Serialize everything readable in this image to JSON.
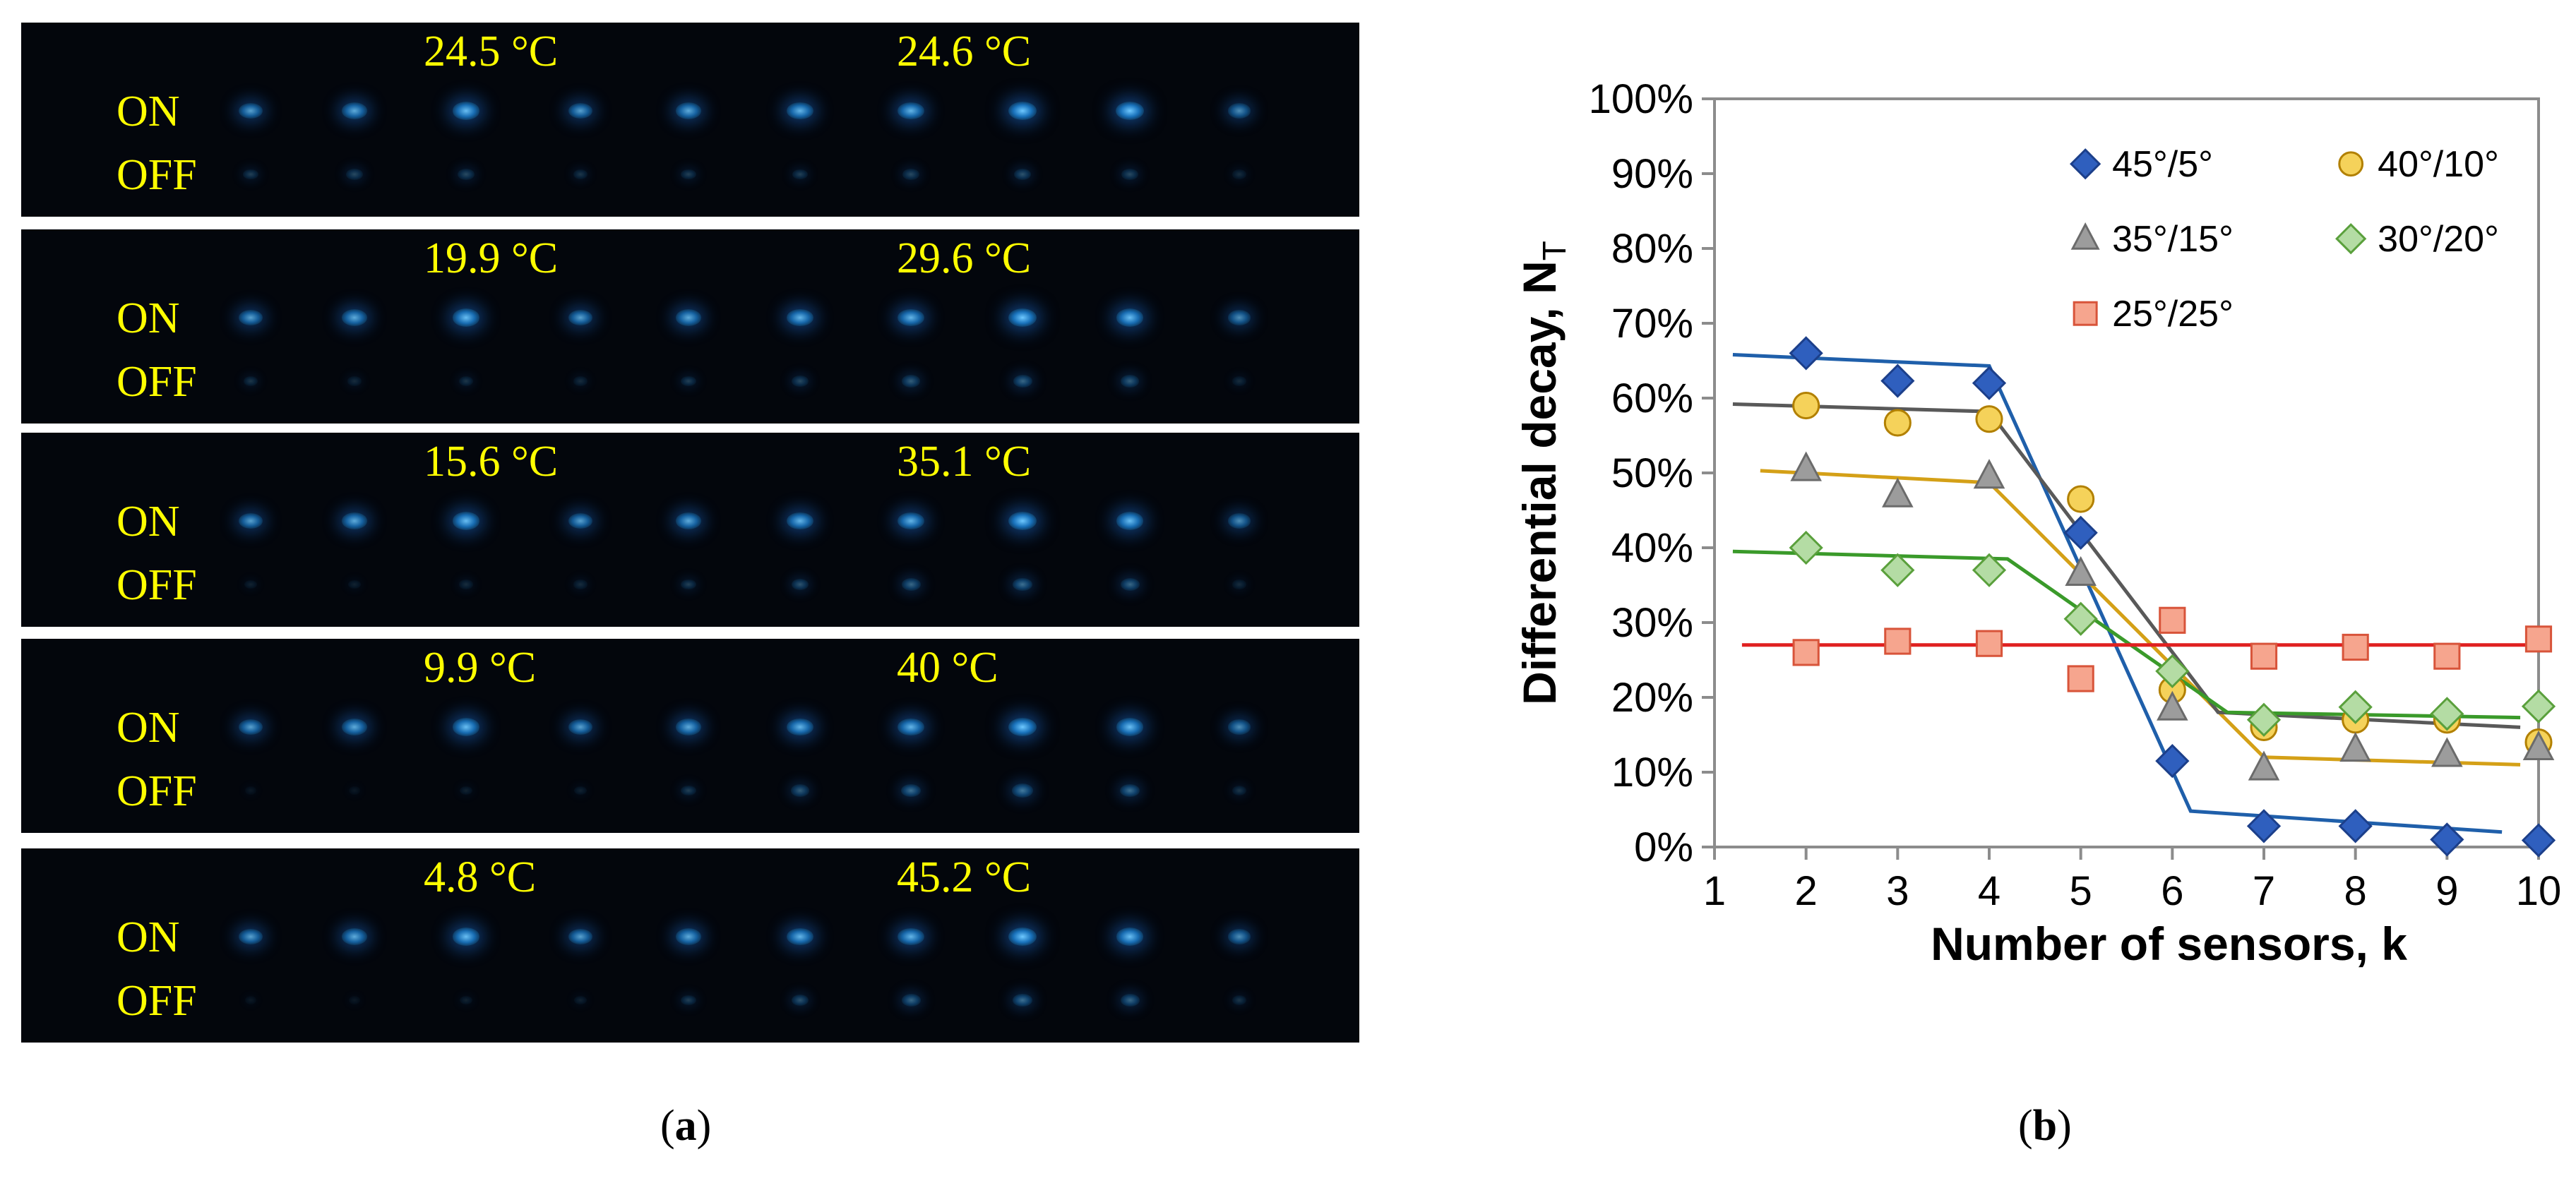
{
  "panel_a": {
    "on_label": "ON",
    "off_label": "OFF",
    "spot_color": "#2aa6ff",
    "label_color": "#ffff00",
    "strips": [
      {
        "t_left": "24.5 °C",
        "t_right": "24.6 °C",
        "on": [
          0.8,
          0.85,
          0.95,
          0.8,
          0.85,
          0.9,
          0.9,
          1.0,
          1.0,
          0.7
        ],
        "off": [
          0.3,
          0.35,
          0.35,
          0.25,
          0.3,
          0.3,
          0.35,
          0.4,
          0.35,
          0.2
        ]
      },
      {
        "t_left": "19.9 °C",
        "t_right": "29.6 °C",
        "on": [
          0.8,
          0.85,
          0.95,
          0.8,
          0.85,
          0.9,
          0.9,
          1.0,
          0.95,
          0.7
        ],
        "off": [
          0.25,
          0.2,
          0.25,
          0.2,
          0.3,
          0.35,
          0.45,
          0.5,
          0.45,
          0.2
        ]
      },
      {
        "t_left": "15.6 °C",
        "t_right": "35.1 °C",
        "on": [
          0.8,
          0.85,
          0.95,
          0.8,
          0.85,
          0.9,
          0.9,
          1.0,
          0.95,
          0.7
        ],
        "off": [
          0.15,
          0.15,
          0.2,
          0.2,
          0.3,
          0.4,
          0.5,
          0.55,
          0.5,
          0.2
        ]
      },
      {
        "t_left": "9.9 °C",
        "t_right": "40 °C",
        "on": [
          0.8,
          0.85,
          0.95,
          0.8,
          0.85,
          0.9,
          0.9,
          1.0,
          0.95,
          0.7
        ],
        "off": [
          0.1,
          0.1,
          0.15,
          0.15,
          0.3,
          0.45,
          0.55,
          0.6,
          0.55,
          0.25
        ]
      },
      {
        "t_left": "4.8 °C",
        "t_right": "45.2 °C",
        "on": [
          0.8,
          0.85,
          0.95,
          0.8,
          0.85,
          0.9,
          0.9,
          1.0,
          0.95,
          0.7
        ],
        "off": [
          0.1,
          0.1,
          0.15,
          0.15,
          0.3,
          0.4,
          0.5,
          0.55,
          0.5,
          0.25
        ]
      }
    ]
  },
  "caption_a": "a",
  "caption_b": "b",
  "chart_data": {
    "type": "scatter",
    "ylabel": "Differential decay, N",
    "ylabel_subscript": "T",
    "xlabel": "Number of  sensors, k",
    "xlim": [
      1,
      10
    ],
    "ylim": [
      0,
      100
    ],
    "x_ticks": [
      "1",
      "2",
      "3",
      "4",
      "5",
      "6",
      "7",
      "8",
      "9",
      "10"
    ],
    "y_ticks": [
      "0%",
      "10%",
      "20%",
      "30%",
      "40%",
      "50%",
      "60%",
      "70%",
      "80%",
      "90%",
      "100%"
    ],
    "grid": false,
    "legend_position": "top-right",
    "series": [
      {
        "name": "45°/5°",
        "marker": "diamond",
        "color": "#2f5fbe",
        "stroke": "#1c3f8a",
        "line_color": "#1f5faa",
        "x": [
          2,
          3,
          4,
          5,
          6,
          7,
          8,
          9,
          10
        ],
        "y": [
          66,
          62.3,
          62,
          42,
          11.5,
          2.8,
          2.8,
          1,
          0.9
        ],
        "fit_x": [
          1.2,
          4,
          6.2,
          9.6
        ],
        "fit_y": [
          65.8,
          64.3,
          4.8,
          2
        ]
      },
      {
        "name": "40°/10°",
        "marker": "circle",
        "color": "#f5d25a",
        "stroke": "#b28000",
        "line_color": "#d4a017",
        "x": [
          2,
          3,
          4,
          5,
          6,
          7,
          8,
          9,
          10
        ],
        "y": [
          59,
          56.7,
          57.2,
          46.5,
          21,
          16,
          17,
          17,
          14
        ],
        "fit_x": [
          1.5,
          4,
          7,
          9.8
        ],
        "fit_y": [
          50.3,
          48.7,
          12,
          11
        ]
      },
      {
        "name": "35°/15°",
        "marker": "triangle",
        "color": "#9c9c9c",
        "stroke": "#6b6b6b",
        "line_color": "#595959",
        "x": [
          2,
          3,
          4,
          5,
          6,
          7,
          8,
          9,
          10
        ],
        "y": [
          50.5,
          47,
          49.5,
          36.5,
          18.5,
          10.5,
          13,
          12.3,
          13.2
        ],
        "fit_x": [
          1.2,
          4,
          6.5,
          9.8
        ],
        "fit_y": [
          59.2,
          58.2,
          18,
          16
        ]
      },
      {
        "name": "30°/20°",
        "marker": "diamond",
        "color": "#b4dca4",
        "stroke": "#5aa03c",
        "line_color": "#3a9a2a",
        "x": [
          2,
          3,
          4,
          5,
          6,
          7,
          8,
          9,
          10
        ],
        "y": [
          40,
          37,
          37,
          30.5,
          23.5,
          17,
          18.7,
          17.8,
          18.8
        ],
        "fit_x": [
          1.2,
          4.2,
          6.6,
          9.8
        ],
        "fit_y": [
          39.5,
          38.5,
          18,
          17.3
        ]
      },
      {
        "name": "25°/25°",
        "marker": "square",
        "color": "#f6a58e",
        "stroke": "#d8543a",
        "line_color": "#e02020",
        "x": [
          2,
          3,
          4,
          5,
          6,
          7,
          8,
          9,
          10
        ],
        "y": [
          26,
          27.5,
          27.2,
          22.5,
          30.3,
          25.5,
          26.7,
          25.5,
          27.8
        ],
        "fit_x": [
          1.3,
          10
        ],
        "fit_y": [
          27,
          27
        ]
      }
    ]
  }
}
